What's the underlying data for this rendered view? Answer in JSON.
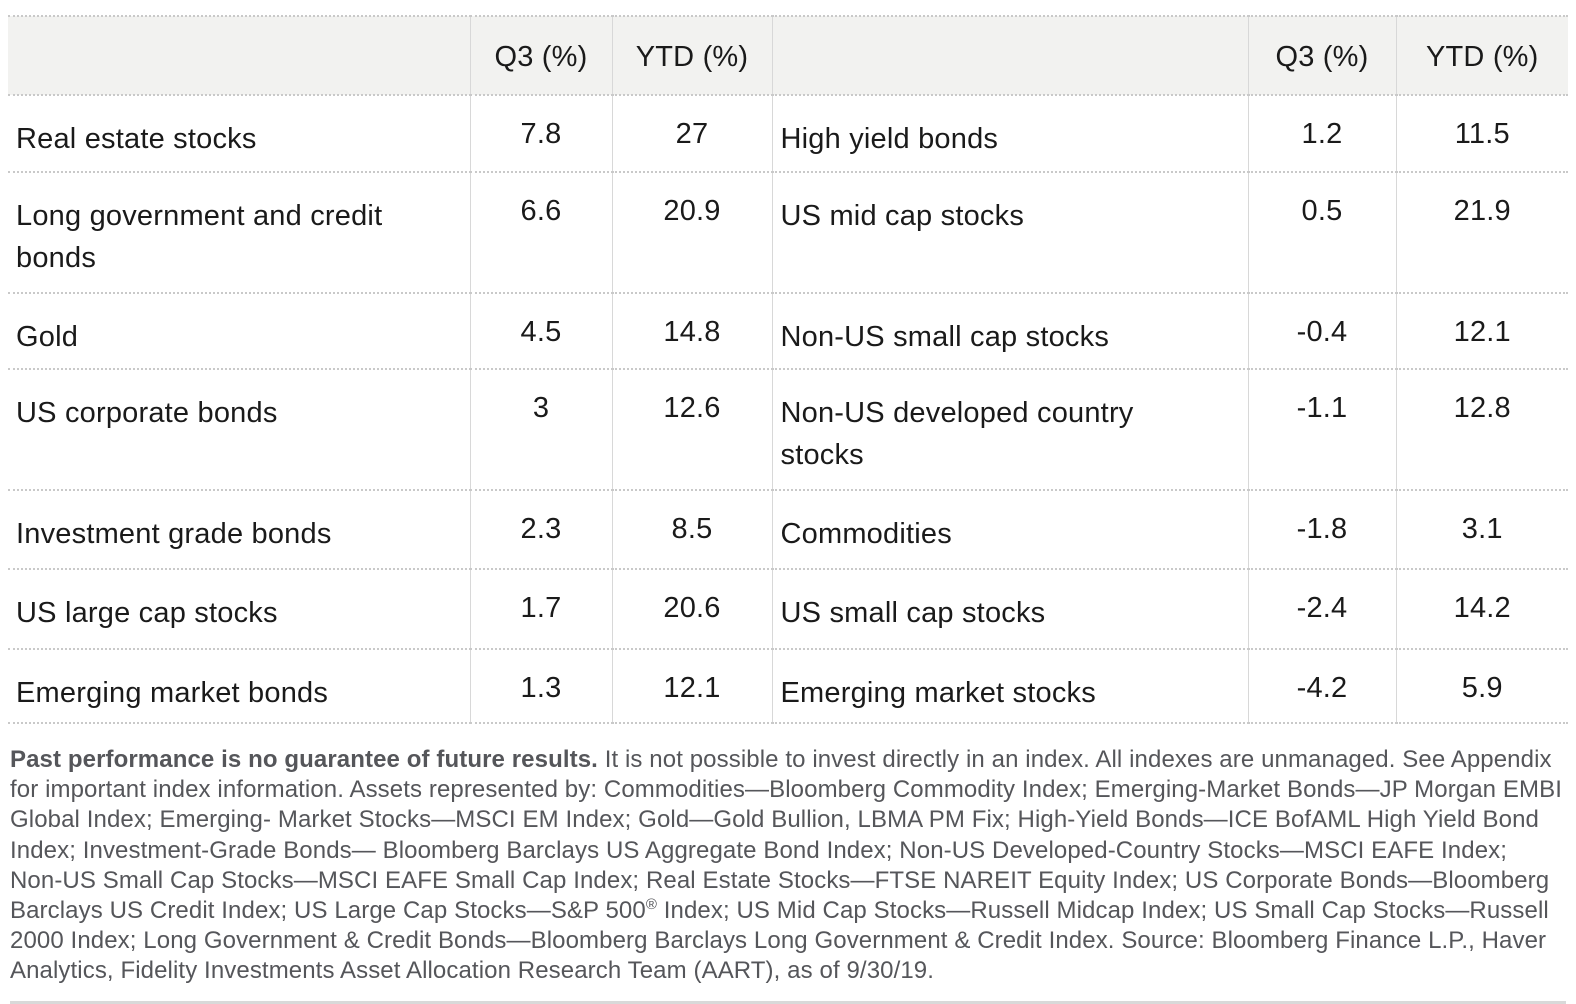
{
  "table": {
    "header": [
      "",
      "Q3 (%)",
      "YTD (%)",
      "",
      "Q3 (%)",
      "YTD (%)"
    ],
    "rows": [
      {
        "left": {
          "label": "Real estate stocks",
          "q3": "7.8",
          "ytd": "27"
        },
        "right": {
          "label": "High yield bonds",
          "q3": "1.2",
          "ytd": "11.5"
        }
      },
      {
        "left": {
          "label": "Long government and credit bonds",
          "q3": "6.6",
          "ytd": "20.9"
        },
        "right": {
          "label": "US mid cap stocks",
          "q3": "0.5",
          "ytd": "21.9"
        }
      },
      {
        "left": {
          "label": "Gold",
          "q3": "4.5",
          "ytd": "14.8"
        },
        "right": {
          "label": "Non-US small cap stocks",
          "q3": "-0.4",
          "ytd": "12.1"
        }
      },
      {
        "left": {
          "label": "US corporate bonds",
          "q3": "3",
          "ytd": "12.6"
        },
        "right": {
          "label": "Non-US developed country stocks",
          "q3": "-1.1",
          "ytd": "12.8"
        }
      },
      {
        "left": {
          "label": "Investment grade bonds",
          "q3": "2.3",
          "ytd": "8.5"
        },
        "right": {
          "label": "Commodities",
          "q3": "-1.8",
          "ytd": "3.1"
        }
      },
      {
        "left": {
          "label": "US large cap stocks",
          "q3": "1.7",
          "ytd": "20.6"
        },
        "right": {
          "label": "US small cap stocks",
          "q3": "-2.4",
          "ytd": "14.2"
        }
      },
      {
        "left": {
          "label": "Emerging market bonds",
          "q3": "1.3",
          "ytd": "12.1"
        },
        "right": {
          "label": "Emerging market stocks",
          "q3": "-4.2",
          "ytd": "5.9"
        }
      }
    ]
  },
  "footnote": {
    "lead_bold": "Past performance is no guarantee of future results.",
    "body_1": " It is not possible to invest directly in an index. All indexes are unmanaged. See Appendix for important index information. Assets represented by: Commodities—Bloomberg Commodity Index; Emerging-Market Bonds—JP Morgan EMBI Global Index; Emerging- Market Stocks—MSCI EM Index; Gold—Gold Bullion, LBMA PM Fix; High-Yield Bonds—ICE BofAML High Yield Bond Index; Investment-Grade Bonds— Bloomberg Barclays US Aggregate Bond Index; Non-US Developed-Country Stocks—MSCI EAFE Index; Non-US Small Cap Stocks—MSCI EAFE Small Cap Index; Real Estate Stocks—FTSE NAREIT Equity Index; US Corporate Bonds—Bloomberg Barclays US Credit Index; US Large Cap Stocks—S&P 500",
    "registered_mark": "®",
    "body_2": " Index; US Mid Cap Stocks—Russell Midcap Index; US Small Cap Stocks—Russell 2000 Index; Long Government & Credit Bonds—Bloomberg Barclays Long Government & Credit Index. Source: Bloomberg Finance L.P., Haver Analytics, Fidelity Investments Asset Allocation Research Team (AART), as of 9/30/19."
  },
  "colors": {
    "header_background": "#f2f2f0",
    "table_text": "#1a1a1a",
    "footnote_text": "#55565a",
    "dotted_rule": "#c9c9c9",
    "column_rule": "#d8d8d8",
    "bottom_rule": "#d9d9d9"
  }
}
